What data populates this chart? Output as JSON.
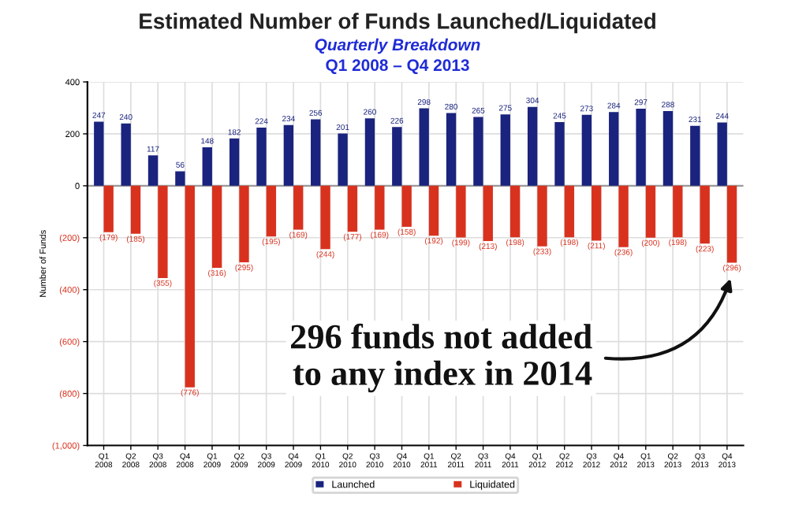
{
  "chart_data": {
    "type": "bar",
    "title": "Estimated Number of Funds Launched/Liquidated",
    "subtitle": "Quarterly Breakdown",
    "ylabel": "Number of Funds",
    "categories": [
      "Q1\n2008",
      "Q2\n2008",
      "Q3\n2008",
      "Q4\n2008",
      "Q1\n2009",
      "Q2\n2009",
      "Q3\n2009",
      "Q4\n2009",
      "Q1\n2010",
      "Q2\n2010",
      "Q3\n2010",
      "Q4\n2010",
      "Q1\n2011",
      "Q2\n2011",
      "Q3\n2011",
      "Q4\n2011",
      "Q1\n2012",
      "Q2\n2012",
      "Q3\n2012",
      "Q4\n2012",
      "Q1\n2013",
      "Q2\n2013",
      "Q3\n2013",
      "Q4\n2013"
    ],
    "series": [
      {
        "name": "Launched",
        "color": "#1a237e",
        "values": [
          247,
          240,
          117,
          56,
          148,
          182,
          224,
          234,
          256,
          201,
          260,
          226,
          298,
          280,
          265,
          275,
          304,
          245,
          273,
          284,
          297,
          288,
          231,
          244
        ],
        "value_labels": [
          "247",
          "240",
          "117",
          "56",
          "148",
          "182",
          "224",
          "234",
          "256",
          "201",
          "260",
          "226",
          "298",
          "280",
          "265",
          "275",
          "304",
          "245",
          "273",
          "284",
          "297",
          "288",
          "231",
          "244"
        ]
      },
      {
        "name": "Liquidated",
        "color": "#d8321f",
        "values": [
          -179,
          -185,
          -355,
          -776,
          -316,
          -295,
          -195,
          -169,
          -244,
          -177,
          -169,
          -158,
          -192,
          -199,
          -213,
          -198,
          -233,
          -198,
          -211,
          -236,
          -200,
          -198,
          -223,
          -296
        ],
        "value_labels": [
          "(179)",
          "(185)",
          "(355)",
          "(776)",
          "(316)",
          "(295)",
          "(195)",
          "(169)",
          "(244)",
          "(177)",
          "(169)",
          "(158)",
          "(192)",
          "(199)",
          "(213)",
          "(198)",
          "(233)",
          "(198)",
          "(211)",
          "(236)",
          "(200)",
          "(198)",
          "(223)",
          "(296)"
        ]
      }
    ],
    "ylim": [
      -1000,
      400
    ],
    "yticks": [
      {
        "value": -1000,
        "label": "(1,000)"
      },
      {
        "value": -800,
        "label": "(800)"
      },
      {
        "value": -600,
        "label": "(600)"
      },
      {
        "value": -400,
        "label": "(400)"
      },
      {
        "value": -200,
        "label": "(200)"
      },
      0,
      200,
      400
    ],
    "grid": true,
    "legend": "bottom",
    "annotations": [
      "Q1 2008 – Q4 2013",
      "296 funds not added\nto any index in 2014"
    ]
  }
}
